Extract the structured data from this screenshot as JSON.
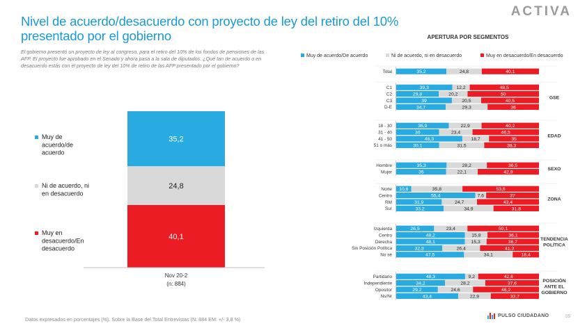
{
  "header": {
    "title": "Nivel de acuerdo/desacuerdo con proyecto de ley del retiro del 10% presentado por el gobierno",
    "description": "El gobierno presentó un proyecto de ley al congreso, para el retiro del 10% de los fondos de pensiones de las AFP. El proyecto fue aprobado en el Senado y ahora pasa a la sala de diputados. ¿Qué tan de acuerdo o en desacuerdo estás con el proyecto de ley del 10% de retiro de las AFP presentado por el gobierno?",
    "brand": "ACTIVA"
  },
  "footer": {
    "note": "Datos expresados en porcentajes (%). Sobre la Base del Total Entrevistas (N: 884 EM: +/- 3,8 %)",
    "logo_text": "PULSO CIUDADANO",
    "page": "55"
  },
  "colors": {
    "agree": "#29abe2",
    "neutral": "#d9d9d9",
    "disagree": "#ec1c24"
  },
  "chart_data": [
    {
      "type": "bar",
      "stacked": true,
      "orientation": "vertical",
      "categories": [
        "Nov 20-2"
      ],
      "category_note": "(n: 884)",
      "series": [
        {
          "name": "Muy de acuerdo/de acuerdo",
          "values": [
            35.2
          ],
          "labels": [
            "35,2"
          ]
        },
        {
          "name": "Ni de acuerdo, ni en desacuerdo",
          "values": [
            24.8
          ],
          "labels": [
            "24,8"
          ]
        },
        {
          "name": "Muy en desacuerdo/En desacuerdo",
          "values": [
            40.1
          ],
          "labels": [
            "40,1"
          ]
        }
      ],
      "legend_position": "left"
    },
    {
      "type": "bar",
      "stacked": true,
      "orientation": "horizontal",
      "title": "APERTURA POR SEGMENTOS",
      "legend": [
        "Muy de acuerdo/De acuerdo",
        "Ni de acuerdo, ni en desacuerdo",
        "Muy en desacuerdo/En desacuerdo"
      ],
      "legend_position": "top",
      "groups": [
        {
          "label": "",
          "rows": [
            {
              "label": "Total",
              "values": [
                35.2,
                24.8,
                40.1
              ],
              "labels": [
                "35,2",
                "24,8",
                "40,1"
              ]
            }
          ]
        },
        {
          "label": "GSE",
          "rows": [
            {
              "label": "C1",
              "values": [
                39.3,
                12.2,
                48.5
              ],
              "labels": [
                "39,3",
                "12,2",
                "48,5"
              ]
            },
            {
              "label": "C2",
              "values": [
                29.8,
                20.2,
                50
              ],
              "labels": [
                "29,8",
                "20,2",
                "50"
              ]
            },
            {
              "label": "C3",
              "values": [
                39,
                20.5,
                40.5
              ],
              "labels": [
                "39",
                "20,5",
                "40,5"
              ]
            },
            {
              "label": "D-E",
              "values": [
                34.7,
                29.3,
                36
              ],
              "labels": [
                "34,7",
                "29,3",
                "36"
              ]
            }
          ]
        },
        {
          "label": "EDAD",
          "rows": [
            {
              "label": "18 - 30",
              "values": [
                36.9,
                22.9,
                40.2
              ],
              "labels": [
                "36,9",
                "22,9",
                "40,2"
              ]
            },
            {
              "label": "31 - 40",
              "values": [
                30,
                23.4,
                46.5
              ],
              "labels": [
                "30",
                "23,4",
                "46,5"
              ]
            },
            {
              "label": "41 - 50",
              "values": [
                46.3,
                18.7,
                35
              ],
              "labels": [
                "46,3",
                "18,7",
                "35"
              ]
            },
            {
              "label": "51 o más",
              "values": [
                30.1,
                31.5,
                38.3
              ],
              "labels": [
                "30,1",
                "31,5",
                "38,3"
              ]
            }
          ]
        },
        {
          "label": "SEXO",
          "rows": [
            {
              "label": "Hombre",
              "values": [
                35.3,
                28.2,
                36.5
              ],
              "labels": [
                "35,3",
                "28,2",
                "36,5"
              ]
            },
            {
              "label": "Mujer",
              "values": [
                35,
                22.1,
                42.9
              ],
              "labels": [
                "35",
                "22,1",
                "42,9"
              ]
            }
          ]
        },
        {
          "label": "ZONA",
          "rows": [
            {
              "label": "Norte",
              "values": [
                10.6,
                35.8,
                53.6
              ],
              "labels": [
                "10,6",
                "35,8",
                "53,6"
              ]
            },
            {
              "label": "Centro",
              "values": [
                55.4,
                7.6,
                37
              ],
              "labels": [
                "55,4",
                "7,6",
                "37"
              ]
            },
            {
              "label": "RM",
              "values": [
                31.9,
                24.7,
                43.4
              ],
              "labels": [
                "31,9",
                "24,7",
                "43,4"
              ]
            },
            {
              "label": "Sur",
              "values": [
                33.2,
                34.9,
                31.8
              ],
              "labels": [
                "33,2",
                "34,9",
                "31,8"
              ]
            }
          ]
        },
        {
          "label": "TENDENCIA POLÍTICA",
          "rows": [
            {
              "label": "Izquierda",
              "values": [
                26.5,
                23.4,
                50.1
              ],
              "labels": [
                "26,5",
                "23,4",
                "50,1"
              ]
            },
            {
              "label": "Centro",
              "values": [
                48.2,
                15.8,
                36.1
              ],
              "labels": [
                "48,2",
                "15,8",
                "36,1"
              ]
            },
            {
              "label": "Derecha",
              "values": [
                48.1,
                15.3,
                36.7
              ],
              "labels": [
                "48,1",
                "15,3",
                "36,7"
              ]
            },
            {
              "label": "Sin Posición Política",
              "values": [
                32.3,
                26.4,
                41.3
              ],
              "labels": [
                "32,3",
                "26,4",
                "41,3"
              ]
            },
            {
              "label": "No sé",
              "values": [
                47.5,
                34.1,
                18.4
              ],
              "labels": [
                "47,5",
                "34,1",
                "18,4"
              ]
            }
          ]
        },
        {
          "label": "POSICIÓN ANTE EL GOBIERNO",
          "rows": [
            {
              "label": "Partidario",
              "values": [
                48.3,
                9.2,
                42.6
              ],
              "labels": [
                "48,3",
                "9,2",
                "42,6"
              ]
            },
            {
              "label": "Independiente",
              "values": [
                34.2,
                28.2,
                37.6
              ],
              "labels": [
                "34,2",
                "28,2",
                "37,6"
              ]
            },
            {
              "label": "Opositor",
              "values": [
                29.2,
                24.6,
                46.2
              ],
              "labels": [
                "29,2",
                "24,6",
                "46,2"
              ]
            },
            {
              "label": "Ns/Nr",
              "values": [
                43.4,
                22.9,
                33.7
              ],
              "labels": [
                "43,4",
                "22,9",
                "33,7"
              ]
            }
          ]
        }
      ]
    }
  ]
}
